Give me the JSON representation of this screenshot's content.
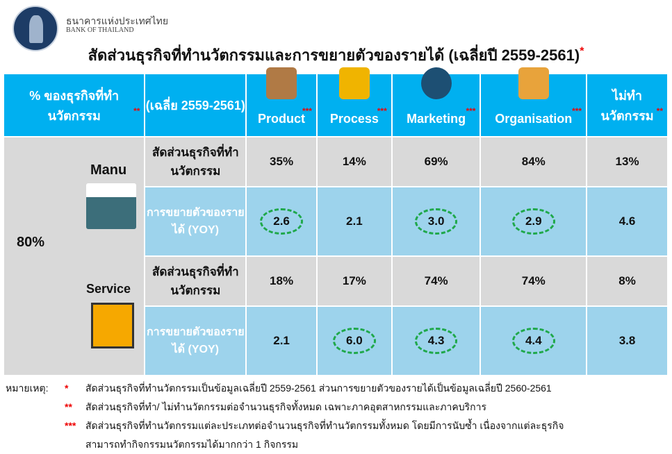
{
  "header": {
    "bank_th": "ธนาคารแห่งประเทศไทย",
    "bank_en": "BANK OF THAILAND",
    "title": "สัดส่วนธุรกิจที่ทำนวัตกรรมและการขยายตัวของรายได้ (เฉลี่ยปี 2559-2561)",
    "title_mark": "*"
  },
  "table": {
    "headers": [
      {
        "label": "% ของธุรกิจที่ทำนวัตกรรม",
        "mark": "**"
      },
      {
        "label": "(เฉลี่ย 2559-2561)",
        "mark": ""
      },
      {
        "label": "Product",
        "mark": "***",
        "icon": "box-star-icon"
      },
      {
        "label": "Process",
        "mark": "***",
        "icon": "process-gear-icon"
      },
      {
        "label": "Marketing",
        "mark": "***",
        "icon": "megaphone-icon"
      },
      {
        "label": "Organisation",
        "mark": "***",
        "icon": "team-icon"
      },
      {
        "label": "ไม่ทำนวัตกรรม",
        "mark": "**"
      }
    ],
    "overall_share": "80%",
    "groups": [
      {
        "name": "Manu",
        "icon": "factory-icon",
        "rows": [
          {
            "label": "สัดส่วนธุรกิจที่ทำนวัตกรรม",
            "values": [
              "35%",
              "14%",
              "69%",
              "84%",
              "13%"
            ],
            "circled": [
              false,
              false,
              false,
              false,
              false
            ]
          },
          {
            "label": "การขยายตัวของรายได้ (YOY)",
            "values": [
              "2.6",
              "2.1",
              "3.0",
              "2.9",
              "4.6"
            ],
            "circled": [
              true,
              false,
              true,
              true,
              false
            ]
          }
        ]
      },
      {
        "name": "Service",
        "icon": "hotel-icon",
        "rows": [
          {
            "label": "สัดส่วนธุรกิจที่ทำนวัตกรรม",
            "values": [
              "18%",
              "17%",
              "74%",
              "74%",
              "8%"
            ],
            "circled": [
              false,
              false,
              false,
              false,
              false
            ]
          },
          {
            "label": "การขยายตัวของรายได้ (YOY)",
            "values": [
              "2.1",
              "6.0",
              "4.3",
              "4.4",
              "3.8"
            ],
            "circled": [
              false,
              true,
              true,
              true,
              false
            ]
          }
        ]
      }
    ]
  },
  "notes": {
    "prefix": "หมายเหตุ:",
    "items": [
      {
        "mark": "*",
        "text": "สัดส่วนธุรกิจที่ทำนวัตกรรมเป็นข้อมูลเฉลี่ยปี 2559-2561  ส่วนการขยายตัวของรายได้เป็นข้อมูลเฉลี่ยปี 2560-2561"
      },
      {
        "mark": "**",
        "text": "สัดส่วนธุรกิจที่ทำ/ ไม่ทำนวัตกรรมต่อจำนวนธุรกิจทั้งหมด เฉพาะภาคอุตสาหกรรมและภาคบริการ"
      },
      {
        "mark": "***",
        "text": "สัดส่วนธุรกิจที่ทำนวัตกรรมแต่ละประเภทต่อจำนวนธุรกิจที่ทำนวัตกรรมทั้งหมด  โดยมีการนับซ้ำ เนื่องจากแต่ละธุรกิจ"
      },
      {
        "mark": "",
        "text": "สามารถทำกิจกรรมนวัตกรรมได้มากกว่า 1 กิจกรรม"
      }
    ]
  },
  "colors": {
    "header": "#00b0f0",
    "grey": "#d9d9d9",
    "light_blue": "#9dd3ec",
    "highlight": "#1fa84a",
    "asterisk": "#e00000"
  }
}
